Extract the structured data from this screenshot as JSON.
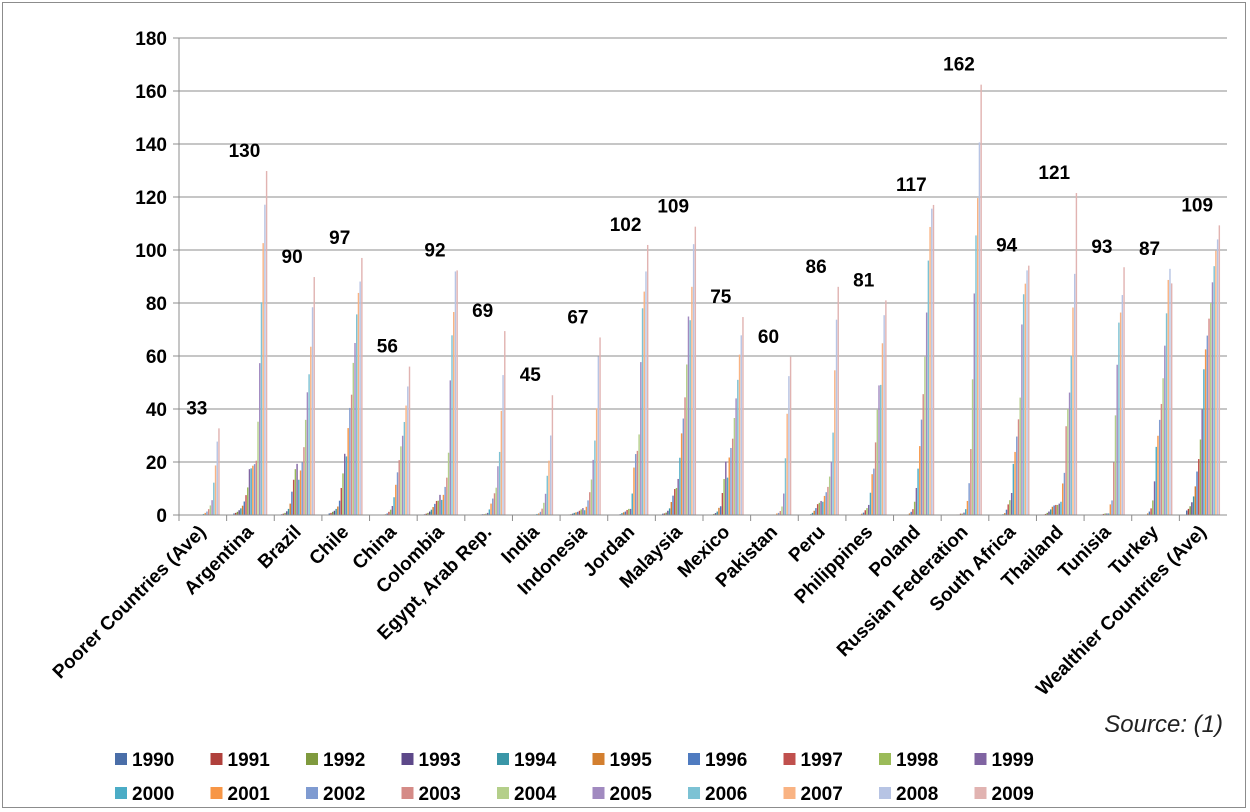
{
  "chart_data": {
    "type": "bar",
    "ylim": [
      0,
      180
    ],
    "yticks": [
      0,
      20,
      40,
      60,
      80,
      100,
      120,
      140,
      160,
      180
    ],
    "grid": true,
    "legend_position": "bottom",
    "categories": [
      "Poorer Countries (Ave)",
      "Argentina",
      "Brazil",
      "Chile",
      "China",
      "Colombia",
      "Egypt, Arab Rep.",
      "India",
      "Indonesia",
      "Jordan",
      "Malaysia",
      "Mexico",
      "Pakistan",
      "Peru",
      "Philippines",
      "Poland",
      "Russian Federation",
      "South Africa",
      "Thailand",
      "Tunisia",
      "Turkey",
      "Wealthier Countries (Ave)"
    ],
    "series": [
      {
        "name": "1990",
        "color": "#4a6ea8",
        "values": [
          0,
          0.6,
          0.3,
          0.6,
          0,
          0.3,
          0,
          0,
          0.1,
          0,
          0.5,
          0.1,
          0,
          0,
          0,
          0,
          0,
          0,
          0.2,
          0,
          0,
          1.7
        ]
      },
      {
        "name": "1991",
        "color": "#b0403c",
        "values": [
          0,
          0.8,
          0.5,
          0.8,
          0,
          0.5,
          0,
          0,
          0.2,
          0,
          0.6,
          0.2,
          0,
          0,
          0,
          0,
          0,
          0,
          0.4,
          0,
          0,
          2.3
        ]
      },
      {
        "name": "1992",
        "color": "#7f9a3e",
        "values": [
          0,
          1.2,
          0.8,
          1.2,
          0,
          0.8,
          0,
          0,
          0.3,
          0,
          0.9,
          0.4,
          0,
          0,
          0,
          0,
          0,
          0,
          0.8,
          0,
          0,
          3.3
        ]
      },
      {
        "name": "1993",
        "color": "#5d4889",
        "values": [
          0,
          1.8,
          1.4,
          1.6,
          0.1,
          1.3,
          0,
          0,
          0.5,
          0.3,
          1.6,
          0.7,
          0,
          0.3,
          0.1,
          0.1,
          0,
          0,
          1.3,
          0,
          0,
          4.8
        ]
      },
      {
        "name": "1994",
        "color": "#3a96a7",
        "values": [
          0,
          2.5,
          2.3,
          2.3,
          0.2,
          2,
          0.1,
          0,
          0.8,
          0.7,
          2.5,
          1.3,
          0,
          0.8,
          0.2,
          0.2,
          0,
          0.3,
          2.1,
          0,
          0.2,
          7
        ]
      },
      {
        "name": "1995",
        "color": "#d37f2f",
        "values": [
          0,
          3.5,
          4.3,
          3.2,
          0.3,
          3,
          0.2,
          0,
          1,
          1,
          4.9,
          2.7,
          0,
          1.6,
          0.5,
          0.6,
          0.2,
          0.7,
          3.1,
          0.1,
          0.6,
          10.8
        ]
      },
      {
        "name": "1996",
        "color": "#4f7bc0",
        "values": [
          0,
          5.1,
          8.8,
          5.4,
          0.6,
          4.2,
          0.3,
          0,
          1.2,
          1.3,
          7.3,
          3.3,
          0,
          2.6,
          0.9,
          1.2,
          0.2,
          2,
          3.6,
          0.2,
          1.3,
          16.4
        ]
      },
      {
        "name": "1997",
        "color": "#c0504d",
        "values": [
          0,
          7.5,
          13.3,
          10.2,
          1.2,
          5.3,
          0.3,
          0.1,
          1.6,
          1.9,
          9.8,
          8.3,
          0,
          4.1,
          1.8,
          2.2,
          0.5,
          4,
          3.8,
          0.4,
          2.5,
          21.1
        ]
      },
      {
        "name": "1998",
        "color": "#9bbb59",
        "values": [
          0,
          10.4,
          17.3,
          15.7,
          2,
          5.4,
          0.5,
          0.2,
          2.1,
          2.3,
          10.2,
          13.6,
          0.1,
          4.6,
          2.6,
          5,
          0.5,
          5.6,
          3.8,
          0.6,
          5.5,
          28.5
        ]
      },
      {
        "name": "1999",
        "color": "#8064a2",
        "values": [
          0,
          17.3,
          19.3,
          23.1,
          3.4,
          7.6,
          0.8,
          0.2,
          2.6,
          2.3,
          13.6,
          20.2,
          0.2,
          5.3,
          3.8,
          10.2,
          0.9,
          8.3,
          4.3,
          0.6,
          12.7,
          39.8
        ]
      },
      {
        "name": "2000",
        "color": "#4bacc6",
        "values": [
          0.4,
          17.6,
          13.3,
          22.1,
          6.7,
          5.7,
          2.1,
          0.4,
          1.8,
          8.1,
          21.6,
          14.1,
          0.2,
          5.0,
          8.4,
          17.5,
          2.2,
          19.3,
          5.0,
          0.6,
          25.7,
          55
        ]
      },
      {
        "name": "2001",
        "color": "#f79646",
        "values": [
          0.8,
          18.6,
          16.8,
          32.8,
          11.4,
          7.6,
          4.3,
          0.6,
          3.1,
          17.9,
          30.8,
          21.7,
          0.6,
          7.2,
          15.4,
          26.0,
          5.3,
          23.8,
          11.9,
          4.0,
          29.9,
          62.5
        ]
      },
      {
        "name": "2002",
        "color": "#7f9bd1",
        "values": [
          1.3,
          19.2,
          19.9,
          40.4,
          16.1,
          10.6,
          6.2,
          1.2,
          5.5,
          23.0,
          36.4,
          25.3,
          0.8,
          8.6,
          17.5,
          36.0,
          12.0,
          29.6,
          15.9,
          5.5,
          35.9,
          67.7
        ]
      },
      {
        "name": "2003",
        "color": "#d58b87",
        "values": [
          2.2,
          20.5,
          25.6,
          45.4,
          20.7,
          14.1,
          8.2,
          2.4,
          8.6,
          24.2,
          44.4,
          28.8,
          1.5,
          10.6,
          27.4,
          45.6,
          24.9,
          36.1,
          33.5,
          19.8,
          41.9,
          74.1
        ]
      },
      {
        "name": "2004",
        "color": "#b4cf8a",
        "values": [
          3.6,
          35.2,
          35.9,
          57.4,
          25.9,
          23.5,
          10.3,
          4.6,
          13.4,
          30.4,
          56.8,
          36.6,
          3.2,
          14.5,
          39.7,
          59.7,
          51.2,
          44.3,
          40.0,
          37.6,
          51.6,
          80
        ]
      },
      {
        "name": "2005",
        "color": "#a18ac0",
        "values": [
          5.6,
          57.3,
          46.3,
          64.9,
          29.9,
          50.8,
          18.4,
          8.0,
          20.8,
          57.7,
          74.9,
          44.0,
          8.1,
          20.0,
          48.9,
          76.4,
          83.6,
          71.9,
          46.2,
          56.7,
          63.9,
          87.8
        ]
      },
      {
        "name": "2006",
        "color": "#7cc2d4",
        "values": [
          12.2,
          80.3,
          53.1,
          75.7,
          35.1,
          67.8,
          23.8,
          14.8,
          28.1,
          78.0,
          73.5,
          51.0,
          21.4,
          31.1,
          49.1,
          96.0,
          105.5,
          83.3,
          60.1,
          72.6,
          76.1,
          93.9
        ]
      },
      {
        "name": "2007",
        "color": "#f9b383",
        "values": [
          18.7,
          102.6,
          63.5,
          83.8,
          41.3,
          76.6,
          39.3,
          20.5,
          40.3,
          84.3,
          86.1,
          60.5,
          38.2,
          54.6,
          64.8,
          108.7,
          119.6,
          87.3,
          78.3,
          76.4,
          88.7,
          99.7
        ]
      },
      {
        "name": "2008",
        "color": "#b7c4e4",
        "values": [
          27.7,
          117.1,
          78.4,
          88.1,
          48.5,
          91.9,
          52.8,
          30.0,
          59.8,
          91.9,
          102.2,
          67.8,
          52.4,
          73.7,
          75.4,
          115.6,
          140.6,
          92.3,
          91.0,
          83.0,
          92.9,
          104
        ]
      },
      {
        "name": "2009",
        "color": "#e1b3b1",
        "values": [
          32.7,
          129.8,
          89.8,
          97.0,
          56.0,
          92.3,
          69.4,
          45.2,
          67.0,
          101.9,
          108.8,
          74.7,
          59.7,
          86.1,
          81.0,
          117.0,
          162.4,
          94.1,
          121.5,
          93.5,
          87.4,
          109.3
        ]
      }
    ],
    "data_labels": [
      "33",
      "130",
      "90",
      "97",
      "56",
      "92",
      "69",
      "45",
      "67",
      "102",
      "109",
      "75",
      "60",
      "86",
      "81",
      "117",
      "162",
      "94",
      "121",
      "93",
      "87",
      "109"
    ]
  },
  "source_note": "Source: (1)"
}
